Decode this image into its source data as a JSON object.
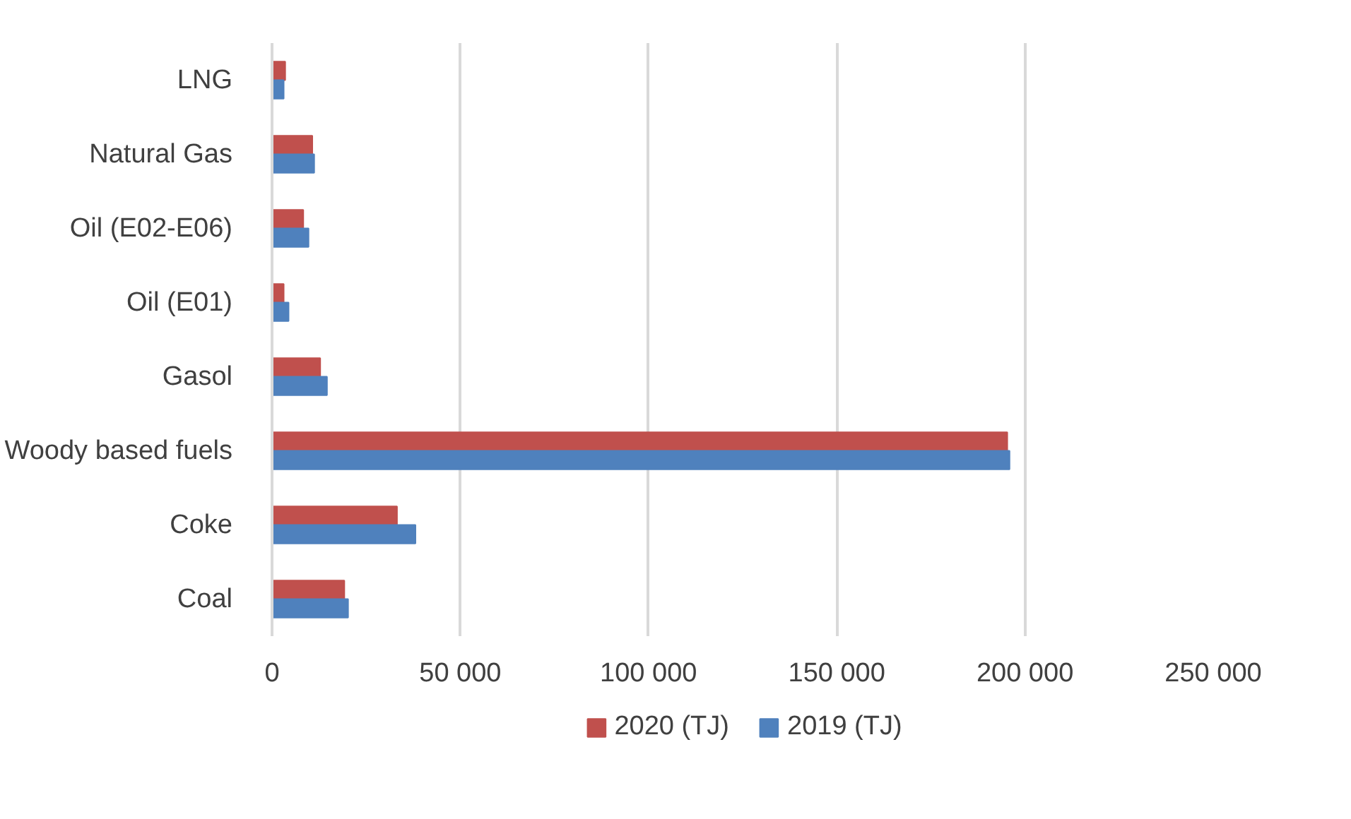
{
  "chart_data": {
    "type": "bar",
    "orientation": "horizontal",
    "categories": [
      "LNG",
      "Natural Gas",
      "Oil (E02-E06)",
      "Oil (E01)",
      "Gasol",
      "Woody based fuels",
      "Coke",
      "Coal"
    ],
    "series": [
      {
        "name": "2020 (TJ)",
        "color": "#c0504d",
        "values": [
          3500,
          10700,
          8300,
          3100,
          12800,
          195300,
          33200,
          19200
        ]
      },
      {
        "name": "2019 (TJ)",
        "color": "#4f81bd",
        "values": [
          3100,
          11200,
          9700,
          4400,
          14600,
          195900,
          38100,
          20200
        ]
      }
    ],
    "xlim": [
      0,
      250000
    ],
    "xticks": [
      0,
      {
        "value": 50000,
        "label": "50 000"
      },
      {
        "value": 100000,
        "label": "100 000"
      },
      {
        "value": 150000,
        "label": "150 000"
      },
      {
        "value": 200000,
        "label": "200 000"
      },
      {
        "value": 250000,
        "label": "250 000"
      }
    ],
    "grid": "x",
    "legend": "bottom"
  }
}
